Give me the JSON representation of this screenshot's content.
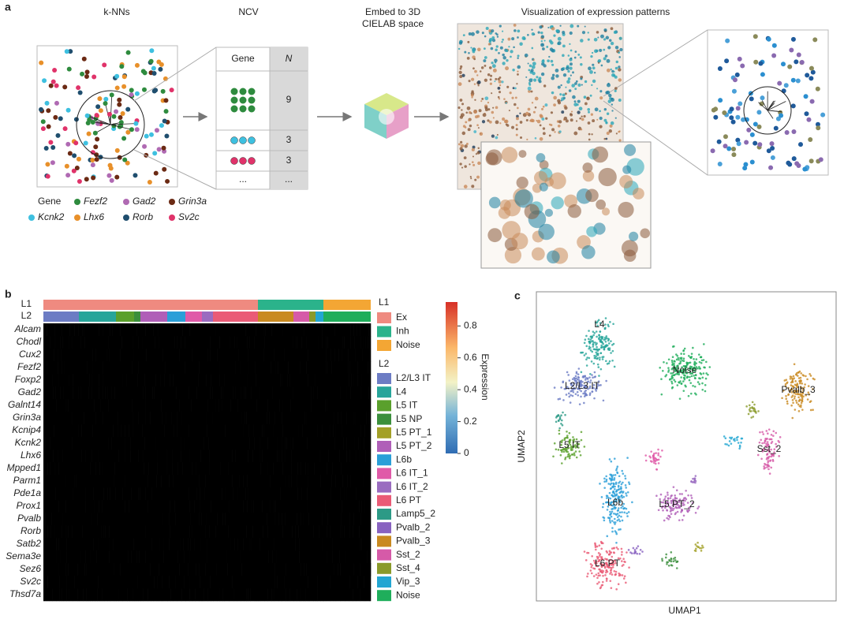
{
  "panel_labels": [
    "a",
    "b",
    "c"
  ],
  "panel_a": {
    "knn_title": "k-NNs",
    "ncv_title": "NCV",
    "embed_title": [
      "Embed to 3D",
      "CIELAB space"
    ],
    "vis_title": "Visualization of expression patterns",
    "table": {
      "header": [
        "Gene",
        "N"
      ],
      "n_values": [
        9,
        3,
        3,
        "..."
      ],
      "ellipsis_gene": "..."
    },
    "gene_legend": {
      "title": "Gene",
      "genes": [
        {
          "name": "Fezf2",
          "color": "#2e8b3e"
        },
        {
          "name": "Gad2",
          "color": "#b06ab3"
        },
        {
          "name": "Grin3a",
          "color": "#6b2a14"
        },
        {
          "name": "Kcnk2",
          "color": "#3ec0e0"
        },
        {
          "name": "Lhx6",
          "color": "#e8902a"
        },
        {
          "name": "Rorb",
          "color": "#1f4e6e"
        },
        {
          "name": "Sv2c",
          "color": "#e0336a"
        }
      ]
    }
  },
  "panel_b": {
    "genes": [
      "Alcam",
      "Chodl",
      "Cux2",
      "Fezf2",
      "Foxp2",
      "Gad2",
      "Galnt14",
      "Grin3a",
      "Kcnip4",
      "Kcnk2",
      "Lhx6",
      "Mpped1",
      "Parm1",
      "Pde1a",
      "Prox1",
      "Pvalb",
      "Rorb",
      "Satb2",
      "Sema3e",
      "Sez6",
      "Sv2c",
      "Thsd7a"
    ],
    "l1_label": "L1",
    "l2_label": "L2",
    "l1": [
      {
        "name": "Ex",
        "color": "#ef8a80"
      },
      {
        "name": "Inh",
        "color": "#2bb38b"
      },
      {
        "name": "Noise",
        "color": "#f3a634"
      }
    ],
    "l2": [
      {
        "name": "L2/L3 IT",
        "color": "#6c7cc4"
      },
      {
        "name": "L4",
        "color": "#27a59a"
      },
      {
        "name": "L5 IT",
        "color": "#5aa02c"
      },
      {
        "name": "L5 NP",
        "color": "#3b8f3c"
      },
      {
        "name": "L5 PT_1",
        "color": "#a3a027"
      },
      {
        "name": "L5 PT_2",
        "color": "#b05fb8"
      },
      {
        "name": "L6b",
        "color": "#2a9fd8"
      },
      {
        "name": "L6 IT_1",
        "color": "#e05aa8"
      },
      {
        "name": "L6 IT_2",
        "color": "#9a6cc0"
      },
      {
        "name": "L6 PT",
        "color": "#ea5b76"
      },
      {
        "name": "Lamp5_2",
        "color": "#2c9a86"
      },
      {
        "name": "Pvalb_2",
        "color": "#8862c0"
      },
      {
        "name": "Pvalb_3",
        "color": "#c98a20"
      },
      {
        "name": "Sst_2",
        "color": "#d65aa8"
      },
      {
        "name": "Sst_4",
        "color": "#8a9a2a"
      },
      {
        "name": "Vip_3",
        "color": "#22a6d2"
      },
      {
        "name": "Noise",
        "color": "#1fae5b"
      }
    ],
    "colorbar": {
      "label": "Expression",
      "lim": [
        0,
        0.95
      ],
      "ticks": [
        0,
        0.2,
        0.4,
        0.6,
        0.8
      ]
    }
  },
  "panel_c": {
    "xlabel": "UMAP1",
    "ylabel": "UMAP2",
    "cluster_labels": [
      "L4",
      "L2/L3 IT",
      "Noise",
      "Pvalb_3",
      "L5 IT",
      "Sst_2",
      "L6b",
      "L5 PT_2",
      "L6 PT"
    ]
  }
}
